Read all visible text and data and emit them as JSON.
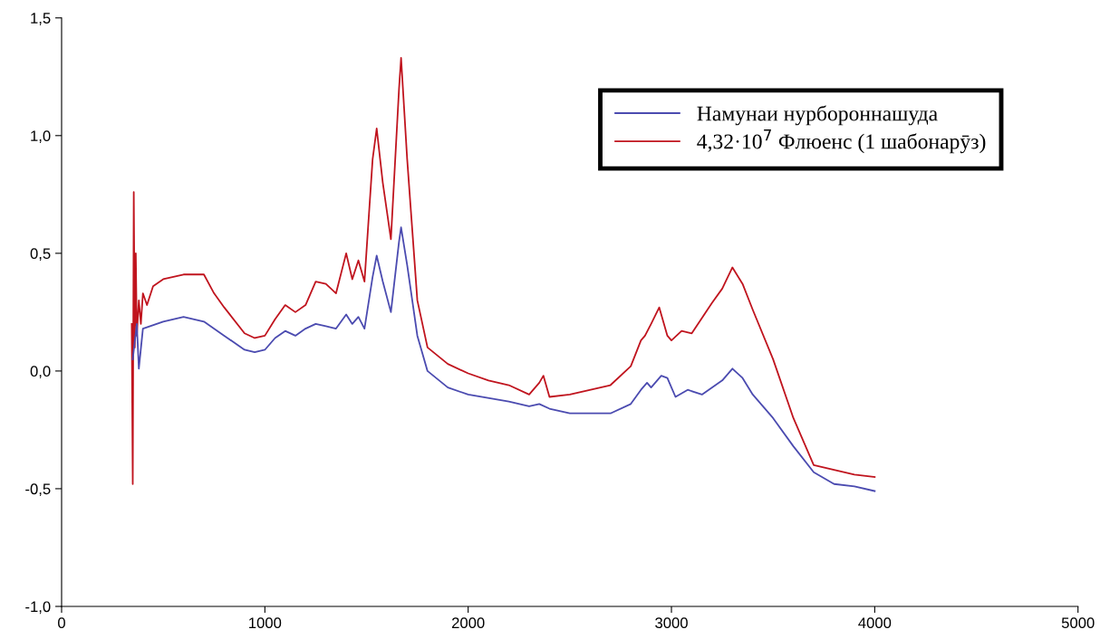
{
  "chart_data": {
    "type": "line",
    "x": [
      350,
      370,
      380,
      400,
      500,
      600,
      700,
      800,
      900,
      950,
      1000,
      1050,
      1100,
      1150,
      1200,
      1250,
      1300,
      1350,
      1400,
      1430,
      1460,
      1490,
      1530,
      1550,
      1580,
      1620,
      1660,
      1670,
      1700,
      1750,
      1800,
      1900,
      2000,
      2200,
      2300,
      2350,
      2400,
      2500,
      2700,
      2800,
      2850,
      2880,
      2900,
      2950,
      2980,
      3000,
      3020,
      3080,
      3150,
      3250,
      3300,
      3350,
      3400,
      3500,
      3600,
      3700,
      3800,
      3900,
      4000
    ],
    "series": [
      {
        "name": "Намунаи нурбороннашуда",
        "color": "#4b4bb0",
        "values": [
          0.05,
          0.2,
          0.01,
          0.18,
          0.21,
          0.23,
          0.21,
          0.15,
          0.09,
          0.08,
          0.09,
          0.14,
          0.17,
          0.15,
          0.18,
          0.2,
          0.19,
          0.18,
          0.24,
          0.2,
          0.23,
          0.18,
          0.4,
          0.49,
          0.38,
          0.25,
          0.55,
          0.61,
          0.45,
          0.15,
          0.0,
          -0.07,
          -0.1,
          -0.13,
          -0.15,
          -0.14,
          -0.16,
          -0.18,
          -0.18,
          -0.14,
          -0.08,
          -0.05,
          -0.07,
          -0.02,
          -0.03,
          -0.07,
          -0.11,
          -0.08,
          -0.1,
          -0.04,
          0.01,
          -0.03,
          -0.1,
          -0.2,
          -0.32,
          -0.43,
          -0.48,
          -0.49,
          -0.51
        ]
      },
      {
        "name": "4,32·10$^{7}$ Флюенс (1 шабонарӯз)",
        "color": "#c0141e",
        "x": [
          345,
          350,
          355,
          360,
          365,
          370,
          380,
          390,
          400,
          420,
          450,
          500,
          600,
          700,
          750,
          800,
          900,
          950,
          1000,
          1050,
          1100,
          1150,
          1200,
          1250,
          1300,
          1350,
          1400,
          1430,
          1460,
          1490,
          1530,
          1550,
          1580,
          1620,
          1660,
          1670,
          1700,
          1750,
          1800,
          1900,
          2000,
          2100,
          2200,
          2300,
          2350,
          2370,
          2400,
          2500,
          2700,
          2800,
          2850,
          2870,
          2900,
          2940,
          2980,
          3000,
          3050,
          3100,
          3200,
          3250,
          3300,
          3350,
          3400,
          3500,
          3600,
          3700,
          3800,
          3900,
          4000
        ],
        "values": [
          0.2,
          -0.48,
          0.76,
          0.1,
          0.5,
          0.15,
          0.3,
          0.2,
          0.33,
          0.28,
          0.36,
          0.39,
          0.41,
          0.41,
          0.33,
          0.27,
          0.16,
          0.14,
          0.15,
          0.22,
          0.28,
          0.25,
          0.28,
          0.38,
          0.37,
          0.33,
          0.5,
          0.39,
          0.47,
          0.38,
          0.9,
          1.03,
          0.8,
          0.56,
          1.2,
          1.33,
          0.9,
          0.3,
          0.1,
          0.03,
          -0.01,
          -0.04,
          -0.06,
          -0.1,
          -0.05,
          -0.02,
          -0.11,
          -0.1,
          -0.06,
          0.02,
          0.13,
          0.15,
          0.2,
          0.27,
          0.15,
          0.13,
          0.17,
          0.16,
          0.29,
          0.35,
          0.44,
          0.37,
          0.26,
          0.05,
          -0.2,
          -0.4,
          -0.42,
          -0.44,
          -0.45
        ]
      }
    ],
    "xlim": [
      0,
      5000
    ],
    "xticks": [
      0,
      1000,
      2000,
      3000,
      4000,
      5000
    ],
    "ylim": [
      -1.0,
      1.5
    ],
    "yticks": [
      {
        "value": -1.0,
        "label": "-1,0"
      },
      {
        "value": -0.5,
        "label": "-0,5"
      },
      {
        "value": 0.0,
        "label": "0,0"
      },
      {
        "value": 0.5,
        "label": "0,5"
      },
      {
        "value": 1.0,
        "label": "1,0"
      },
      {
        "value": 1.5,
        "label": "1,5"
      }
    ],
    "grid": false,
    "legend": "top right",
    "marker": "none",
    "line_style": "solid"
  }
}
